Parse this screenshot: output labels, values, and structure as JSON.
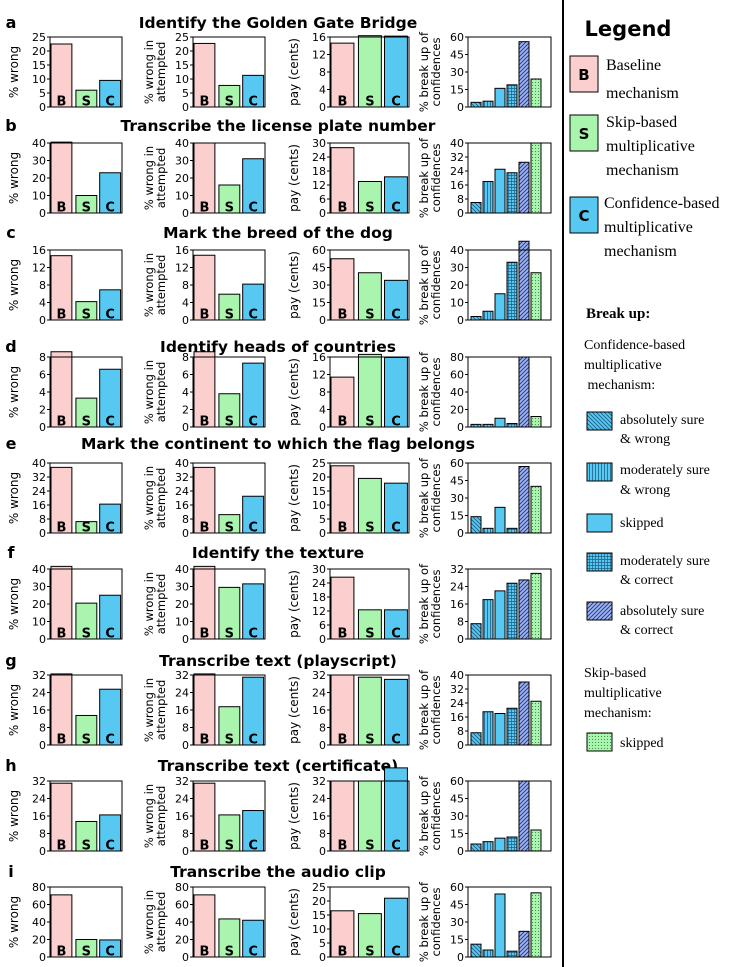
{
  "legend": {
    "title": "Legend",
    "entries": [
      {
        "letter": "B",
        "text": [
          "Baseline",
          "mechanism"
        ],
        "color": "#fccfcf"
      },
      {
        "letter": "S",
        "text": [
          "Skip-based",
          "multiplicative",
          "mechanism"
        ],
        "color": "#a9f5ae"
      },
      {
        "letter": "C",
        "text": [
          "Confidence-based",
          "multiplicative",
          "mechanism"
        ],
        "color": "#57c8f2"
      }
    ],
    "breakup_title": "Break up:",
    "conf_heading": [
      "Confidence-based",
      "multiplicative",
      " mechanism:"
    ],
    "breakup_items": [
      {
        "pattern": "diag-back",
        "text": [
          "absolutely sure",
          "& wrong"
        ]
      },
      {
        "pattern": "vert",
        "text": [
          "moderately sure",
          "& wrong"
        ]
      },
      {
        "pattern": "solid",
        "text": [
          "skipped"
        ]
      },
      {
        "pattern": "grid",
        "text": [
          "moderately sure",
          "& correct"
        ]
      },
      {
        "pattern": "diag-fwd",
        "text": [
          "absolutely sure",
          "& correct"
        ]
      }
    ],
    "skip_heading": [
      "Skip-based",
      "multiplicative",
      "mechanism:"
    ],
    "skip_items": [
      {
        "pattern": "dots",
        "text": [
          "skipped"
        ]
      }
    ]
  },
  "colors": {
    "B": "#fccfcf",
    "S": "#a9f5ae",
    "C": "#57c8f2",
    "C_dark": "#2b9fd6",
    "abs_correct": "#9db4ee"
  },
  "bar_labels": [
    "B",
    "S",
    "C"
  ],
  "ylabels": {
    "wrong": [
      "% wrong"
    ],
    "wrong_att": [
      "% wrong in",
      "attempted"
    ],
    "pay": [
      "pay (cents)"
    ],
    "breakup": [
      "% break up of",
      "confidences"
    ]
  },
  "chart_data": [
    {
      "letter": "a",
      "title": "Identify the Golden Gate Bridge",
      "type": "bar",
      "wrong": {
        "values": [
          22.5,
          6,
          9.5
        ],
        "ticks": [
          0,
          5,
          10,
          15,
          20,
          25
        ]
      },
      "wrong_att": {
        "values": [
          22.7,
          7.7,
          11.3
        ],
        "ticks": [
          0,
          5,
          10,
          15,
          20,
          25
        ]
      },
      "pay": {
        "values": [
          14.6,
          16.3,
          16.2
        ],
        "ticks": [
          0,
          4,
          8,
          12,
          16
        ]
      },
      "breakup": {
        "values": [
          4,
          5,
          16,
          19,
          56,
          24
        ],
        "ticks": [
          0,
          15,
          30,
          45,
          60
        ]
      }
    },
    {
      "letter": "b",
      "title": "Transcribe the license plate number",
      "type": "bar",
      "wrong": {
        "values": [
          40.5,
          10,
          23
        ],
        "ticks": [
          0,
          10,
          20,
          30,
          40
        ]
      },
      "wrong_att": {
        "values": [
          40,
          16,
          31
        ],
        "ticks": [
          0,
          10,
          20,
          30,
          40
        ]
      },
      "pay": {
        "values": [
          28,
          13.5,
          15.5
        ],
        "ticks": [
          0,
          6,
          12,
          18,
          24,
          30
        ]
      },
      "breakup": {
        "values": [
          6,
          18,
          25,
          23,
          29,
          40
        ],
        "ticks": [
          0,
          8,
          16,
          24,
          32,
          40
        ]
      }
    },
    {
      "letter": "c",
      "title": "Mark the breed of the dog",
      "type": "bar",
      "wrong": {
        "values": [
          14.7,
          4.2,
          6.9
        ],
        "ticks": [
          0,
          4,
          8,
          12,
          16
        ]
      },
      "wrong_att": {
        "values": [
          14.8,
          5.9,
          8.2
        ],
        "ticks": [
          0,
          4,
          8,
          12,
          16
        ]
      },
      "pay": {
        "values": [
          52.5,
          40.5,
          34
        ],
        "ticks": [
          0,
          15,
          30,
          45,
          60
        ]
      },
      "breakup": {
        "values": [
          2,
          5,
          15,
          33,
          45,
          27
        ],
        "ticks": [
          0,
          10,
          20,
          30,
          40
        ]
      }
    },
    {
      "letter": "d",
      "title": "Identify heads of countries",
      "type": "bar",
      "wrong": {
        "values": [
          8.6,
          3.3,
          6.6
        ],
        "ticks": [
          0,
          2,
          4,
          6,
          8
        ]
      },
      "wrong_att": {
        "values": [
          8.6,
          3.8,
          7.3
        ],
        "ticks": [
          0,
          2,
          4,
          6,
          8
        ]
      },
      "pay": {
        "values": [
          11.4,
          16.6,
          15.9
        ],
        "ticks": [
          0,
          4,
          8,
          12,
          16
        ]
      },
      "breakup": {
        "values": [
          3,
          3,
          10,
          4,
          80,
          12
        ],
        "ticks": [
          0,
          20,
          40,
          60,
          80
        ]
      }
    },
    {
      "letter": "e",
      "title": "Mark the continent to which the flag belongs",
      "type": "bar",
      "wrong": {
        "values": [
          37.5,
          6.5,
          16.5
        ],
        "ticks": [
          0,
          8,
          16,
          24,
          32,
          40
        ]
      },
      "wrong_att": {
        "values": [
          37.5,
          10.5,
          21
        ],
        "ticks": [
          0,
          8,
          16,
          24,
          32,
          40
        ]
      },
      "pay": {
        "values": [
          24,
          19.5,
          17.8
        ],
        "ticks": [
          0,
          5,
          10,
          15,
          20,
          25
        ]
      },
      "breakup": {
        "values": [
          14,
          4,
          22,
          4,
          57,
          40
        ],
        "ticks": [
          0,
          15,
          30,
          45,
          60
        ]
      }
    },
    {
      "letter": "f",
      "title": "Identify the texture",
      "type": "bar",
      "wrong": {
        "values": [
          41.5,
          20.5,
          25
        ],
        "ticks": [
          0,
          10,
          20,
          30,
          40
        ]
      },
      "wrong_att": {
        "values": [
          41.5,
          29.5,
          31.5
        ],
        "ticks": [
          0,
          10,
          20,
          30,
          40
        ]
      },
      "pay": {
        "values": [
          26.5,
          12.5,
          12.5
        ],
        "ticks": [
          0,
          6,
          12,
          18,
          24,
          30
        ]
      },
      "breakup": {
        "values": [
          7,
          18,
          22,
          25.5,
          27,
          30
        ],
        "ticks": [
          0,
          8,
          16,
          24,
          32
        ]
      }
    },
    {
      "letter": "g",
      "title": "Transcribe text (playscript)",
      "type": "bar",
      "wrong": {
        "values": [
          32.5,
          13.5,
          25.5
        ],
        "ticks": [
          0,
          8,
          16,
          24,
          32
        ]
      },
      "wrong_att": {
        "values": [
          32.5,
          17.5,
          31
        ],
        "ticks": [
          0,
          8,
          16,
          24,
          32
        ]
      },
      "pay": {
        "values": [
          32,
          31,
          30
        ],
        "ticks": [
          0,
          8,
          16,
          24,
          32
        ]
      },
      "breakup": {
        "values": [
          7,
          19,
          18,
          21,
          36,
          25
        ],
        "ticks": [
          0,
          8,
          16,
          24,
          32,
          40
        ]
      }
    },
    {
      "letter": "h",
      "title": "Transcribe text (certificate)",
      "type": "bar",
      "wrong": {
        "values": [
          31,
          13.5,
          16.5
        ],
        "ticks": [
          0,
          8,
          16,
          24,
          32
        ]
      },
      "wrong_att": {
        "values": [
          31,
          16.5,
          18.5
        ],
        "ticks": [
          0,
          8,
          16,
          24,
          32
        ]
      },
      "pay": {
        "values": [
          32,
          32,
          38
        ],
        "ticks": [
          0,
          8,
          16,
          24,
          32
        ]
      },
      "breakup": {
        "values": [
          6,
          8,
          11,
          12,
          60,
          18
        ],
        "ticks": [
          0,
          15,
          30,
          45,
          60
        ]
      }
    },
    {
      "letter": "i",
      "title": "Transcribe the audio clip",
      "type": "bar",
      "wrong": {
        "values": [
          71,
          20,
          19.5
        ],
        "ticks": [
          0,
          20,
          40,
          60,
          80
        ]
      },
      "wrong_att": {
        "values": [
          71,
          43.5,
          42
        ],
        "ticks": [
          0,
          20,
          40,
          60,
          80
        ]
      },
      "pay": {
        "values": [
          16.5,
          15.5,
          21
        ],
        "ticks": [
          0,
          5,
          10,
          15,
          20,
          25
        ]
      },
      "breakup": {
        "values": [
          11,
          6,
          54,
          5,
          22,
          55
        ],
        "ticks": [
          0,
          15,
          30,
          45,
          60
        ]
      }
    }
  ]
}
